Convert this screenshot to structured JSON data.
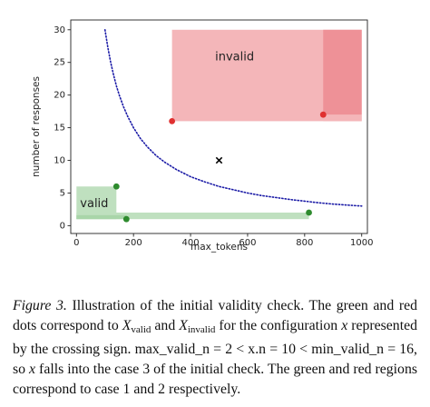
{
  "chart_data": {
    "type": "scatter",
    "xlabel": "max_tokens",
    "ylabel": "number of responses",
    "xlim": [
      -20,
      1020
    ],
    "ylim": [
      -1.2,
      31.5
    ],
    "xticks": [
      0,
      200,
      400,
      600,
      800,
      1000
    ],
    "yticks": [
      0,
      5,
      10,
      15,
      20,
      25,
      30
    ],
    "grid": false,
    "curve": {
      "style": "dotted",
      "color": "#1a1aa6",
      "x": [
        100,
        110,
        120,
        130,
        140,
        150,
        165,
        180,
        200,
        225,
        250,
        280,
        310,
        350,
        400,
        450,
        500,
        550,
        600,
        650,
        700,
        750,
        800,
        850,
        900,
        950,
        1000
      ],
      "y": [
        30,
        27.3,
        25,
        23.1,
        21.4,
        20,
        18.2,
        16.7,
        15,
        13.3,
        12,
        10.7,
        9.7,
        8.6,
        7.5,
        6.7,
        6,
        5.5,
        5,
        4.6,
        4.3,
        4,
        3.75,
        3.5,
        3.3,
        3.15,
        3
      ]
    },
    "regions": [
      {
        "label": "invalid",
        "x": [
          335,
          1000
        ],
        "y": [
          16,
          30
        ],
        "color": "#f4b6b9"
      },
      {
        "label": "",
        "x": [
          865,
          1000
        ],
        "y": [
          17,
          30
        ],
        "color": "#ee9197"
      },
      {
        "label": "",
        "x": [
          865,
          1000
        ],
        "y": [
          16,
          17
        ],
        "color": "#f4b6b9"
      },
      {
        "label": "valid",
        "x": [
          0,
          140
        ],
        "y": [
          1,
          6
        ],
        "color": "#bfe0bf"
      },
      {
        "label": "",
        "x": [
          0,
          815
        ],
        "y": [
          1,
          2
        ],
        "color": "#bfe0bf"
      },
      {
        "label": "",
        "x": [
          0,
          175
        ],
        "y": [
          1,
          1.6
        ],
        "color": "#a9d5a9"
      }
    ],
    "points": [
      {
        "group": "valid",
        "x": 140,
        "y": 6,
        "color": "#2e8b2e"
      },
      {
        "group": "valid",
        "x": 175,
        "y": 1,
        "color": "#2e8b2e"
      },
      {
        "group": "valid",
        "x": 815,
        "y": 2,
        "color": "#2e8b2e"
      },
      {
        "group": "invalid",
        "x": 335,
        "y": 16,
        "color": "#e03030"
      },
      {
        "group": "invalid",
        "x": 865,
        "y": 17,
        "color": "#e03030"
      }
    ],
    "cross": {
      "x": 500,
      "y": 10,
      "color": "#000000"
    }
  },
  "caption": {
    "label": "Figure 3.",
    "text_1": " Illustration of the initial validity check. The green and red dots correspond to ",
    "x_valid_base": "X",
    "x_valid_sub": "valid",
    "text_2": " and ",
    "x_invalid_base": "X",
    "x_invalid_sub": "invalid",
    "text_3": " for the configuration ",
    "x_var": "x",
    "text_4": " represented by the crossing sign. max_valid_n = 2 < x.n = 10 < min_valid_n = 16, so ",
    "x_var_2": "x",
    "text_5": " falls into the case 3 of the initial check. The green and red regions correspond to case 1 and 2 respectively."
  }
}
